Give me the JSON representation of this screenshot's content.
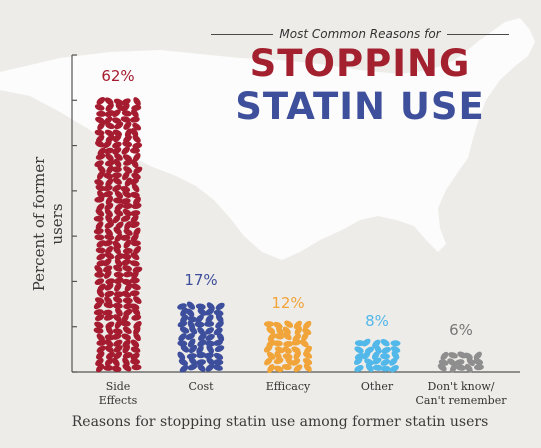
{
  "header": {
    "subtitle": "Most Common Reasons for",
    "title_line1": "STOPPING",
    "title_line2": "STATIN USE",
    "title_line1_color": "#a3202f",
    "title_line2_color": "#3e509b"
  },
  "chart_data": {
    "type": "bar",
    "title": "Most Common Reasons for STOPPING STATIN USE",
    "xlabel": "Reasons for stopping statin use among former statin users",
    "ylabel": "Percent of former users",
    "ylim": [
      0,
      70
    ],
    "categories": [
      "Side\nEffects",
      "Cost",
      "Efficacy",
      "Other",
      "Don't know/\nCan't remember"
    ],
    "values": [
      62,
      17,
      12,
      8,
      6
    ],
    "value_labels": [
      "62%",
      "17%",
      "12%",
      "8%",
      "6%"
    ],
    "colors": [
      "#a51c30",
      "#3d4f9c",
      "#f0a43a",
      "#52b8ea",
      "#8e8e8e"
    ],
    "bar_style": "stacked pill icons",
    "background": "faint map of the United States"
  }
}
